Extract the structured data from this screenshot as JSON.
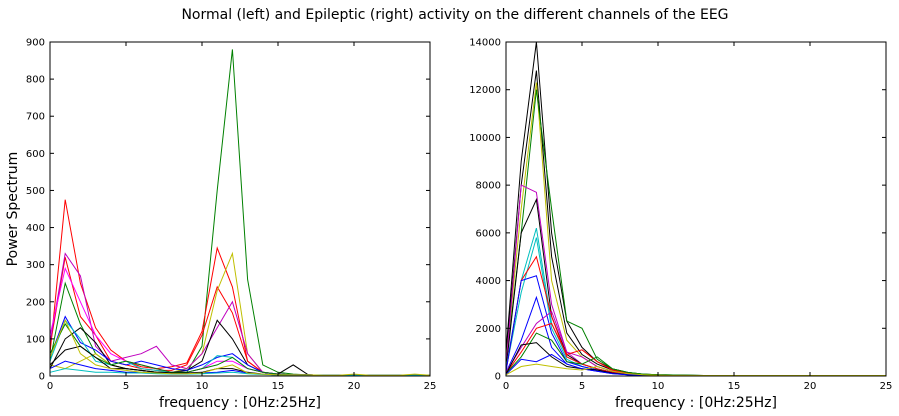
{
  "figure": {
    "suptitle": "Normal (left) and Epileptic (right) activity on the different channels of the EEG"
  },
  "chart_data": [
    {
      "type": "line",
      "panel": "left",
      "title": "",
      "xlabel": "frequency : [0Hz:25Hz]",
      "ylabel": "Power Spectrum",
      "xlim": [
        0,
        25
      ],
      "ylim": [
        0,
        900
      ],
      "xticks": [
        0,
        5,
        10,
        15,
        20,
        25
      ],
      "yticks": [
        0,
        100,
        200,
        300,
        400,
        500,
        600,
        700,
        800,
        900
      ],
      "x": [
        0,
        1,
        2,
        3,
        4,
        5,
        6,
        7,
        8,
        9,
        10,
        11,
        12,
        13,
        14,
        15,
        16,
        17,
        18,
        19,
        20,
        21,
        22,
        23,
        24,
        25
      ],
      "series": [
        {
          "color": "#008000",
          "values": [
            40,
            250,
            140,
            60,
            30,
            20,
            15,
            10,
            8,
            10,
            80,
            500,
            880,
            260,
            30,
            10,
            5,
            3,
            2,
            2,
            2,
            2,
            2,
            2,
            2,
            2
          ]
        },
        {
          "color": "#ff0000",
          "values": [
            60,
            475,
            250,
            130,
            70,
            40,
            25,
            20,
            25,
            35,
            120,
            345,
            240,
            40,
            10,
            5,
            3,
            3,
            2,
            2,
            2,
            2,
            2,
            2,
            2,
            2
          ]
        },
        {
          "color": "#ff0000",
          "values": [
            80,
            320,
            160,
            110,
            40,
            30,
            20,
            15,
            15,
            30,
            110,
            240,
            170,
            40,
            10,
            5,
            3,
            3,
            2,
            2,
            2,
            2,
            2,
            2,
            2,
            2
          ]
        },
        {
          "color": "#bfbf00",
          "values": [
            30,
            20,
            40,
            60,
            30,
            20,
            15,
            10,
            10,
            20,
            60,
            230,
            330,
            60,
            10,
            5,
            3,
            3,
            2,
            2,
            2,
            2,
            2,
            2,
            2,
            2
          ]
        },
        {
          "color": "#bf00bf",
          "values": [
            90,
            330,
            270,
            80,
            40,
            50,
            60,
            80,
            30,
            20,
            60,
            130,
            200,
            60,
            10,
            5,
            3,
            3,
            2,
            2,
            2,
            2,
            2,
            2,
            2,
            2
          ]
        },
        {
          "color": "#000000",
          "values": [
            20,
            100,
            130,
            90,
            30,
            20,
            15,
            10,
            10,
            15,
            40,
            150,
            100,
            30,
            10,
            5,
            30,
            3,
            2,
            2,
            2,
            2,
            2,
            2,
            2,
            2
          ]
        },
        {
          "color": "#0000ff",
          "values": [
            50,
            160,
            90,
            70,
            40,
            30,
            40,
            30,
            20,
            15,
            30,
            50,
            60,
            30,
            10,
            5,
            3,
            3,
            2,
            2,
            2,
            2,
            2,
            2,
            2,
            2
          ]
        },
        {
          "color": "#00bfbf",
          "values": [
            40,
            150,
            100,
            40,
            30,
            40,
            20,
            15,
            10,
            10,
            20,
            55,
            50,
            20,
            10,
            5,
            3,
            3,
            2,
            2,
            2,
            2,
            2,
            2,
            2,
            2
          ]
        },
        {
          "color": "#ff00ff",
          "values": [
            110,
            290,
            200,
            110,
            60,
            40,
            30,
            20,
            10,
            10,
            20,
            40,
            40,
            20,
            10,
            5,
            3,
            3,
            2,
            2,
            2,
            2,
            2,
            2,
            2,
            2
          ]
        },
        {
          "color": "#008000",
          "values": [
            60,
            140,
            80,
            50,
            30,
            40,
            30,
            20,
            10,
            10,
            20,
            30,
            50,
            20,
            10,
            5,
            3,
            3,
            2,
            2,
            2,
            2,
            2,
            2,
            2,
            2
          ]
        },
        {
          "color": "#000000",
          "values": [
            30,
            70,
            80,
            50,
            20,
            20,
            15,
            10,
            8,
            8,
            10,
            20,
            20,
            10,
            5,
            3,
            3,
            3,
            2,
            2,
            2,
            2,
            2,
            2,
            2,
            2
          ]
        },
        {
          "color": "#0000ff",
          "values": [
            20,
            40,
            30,
            20,
            15,
            10,
            10,
            8,
            6,
            6,
            8,
            10,
            15,
            8,
            5,
            3,
            3,
            3,
            2,
            2,
            2,
            2,
            2,
            2,
            2,
            2
          ]
        },
        {
          "color": "#00bfbf",
          "values": [
            10,
            20,
            15,
            10,
            10,
            8,
            8,
            6,
            5,
            5,
            6,
            8,
            10,
            6,
            4,
            3,
            3,
            3,
            2,
            2,
            2,
            2,
            2,
            2,
            2,
            2
          ]
        },
        {
          "color": "#bfbf00",
          "values": [
            50,
            150,
            60,
            30,
            20,
            15,
            10,
            8,
            6,
            6,
            8,
            20,
            30,
            8,
            5,
            3,
            3,
            3,
            2,
            2,
            5,
            2,
            2,
            2,
            5,
            2
          ]
        }
      ]
    },
    {
      "type": "line",
      "panel": "right",
      "title": "",
      "xlabel": "frequency : [0Hz:25Hz]",
      "ylabel": "",
      "xlim": [
        0,
        25
      ],
      "ylim": [
        0,
        14000
      ],
      "xticks": [
        0,
        5,
        10,
        15,
        20,
        25
      ],
      "yticks": [
        0,
        2000,
        4000,
        6000,
        8000,
        10000,
        12000,
        14000
      ],
      "x": [
        0,
        1,
        2,
        3,
        4,
        5,
        6,
        7,
        8,
        9,
        10,
        11,
        12,
        13,
        14,
        15,
        16,
        17,
        18,
        19,
        20,
        21,
        22,
        23,
        24,
        25
      ],
      "series": [
        {
          "color": "#000000",
          "values": [
            1000,
            9000,
            14000,
            6000,
            2300,
            1200,
            600,
            300,
            150,
            80,
            50,
            40,
            30,
            20,
            20,
            20,
            20,
            20,
            20,
            20,
            20,
            20,
            20,
            20,
            20,
            20
          ]
        },
        {
          "color": "#000000",
          "values": [
            800,
            8000,
            12800,
            5000,
            1800,
            900,
            500,
            250,
            120,
            60,
            40,
            30,
            20,
            20,
            20,
            20,
            20,
            20,
            20,
            20,
            20,
            20,
            20,
            20,
            20,
            20
          ]
        },
        {
          "color": "#bfbf00",
          "values": [
            600,
            7000,
            12300,
            4000,
            1500,
            800,
            400,
            200,
            100,
            50,
            40,
            30,
            20,
            20,
            20,
            20,
            20,
            20,
            20,
            20,
            20,
            20,
            20,
            20,
            20,
            20
          ]
        },
        {
          "color": "#008000",
          "values": [
            500,
            6000,
            12000,
            7000,
            2300,
            2000,
            700,
            300,
            150,
            80,
            50,
            40,
            30,
            20,
            20,
            20,
            20,
            20,
            20,
            20,
            20,
            20,
            20,
            20,
            20,
            20
          ]
        },
        {
          "color": "#bf00bf",
          "values": [
            400,
            8000,
            7700,
            3000,
            1000,
            500,
            300,
            150,
            80,
            40,
            30,
            20,
            20,
            20,
            20,
            20,
            20,
            20,
            20,
            20,
            20,
            20,
            20,
            20,
            20,
            20
          ]
        },
        {
          "color": "#000000",
          "values": [
            300,
            6000,
            7400,
            2500,
            900,
            500,
            300,
            150,
            80,
            40,
            30,
            20,
            20,
            20,
            20,
            20,
            20,
            20,
            20,
            20,
            20,
            20,
            20,
            20,
            20,
            20
          ]
        },
        {
          "color": "#00bfbf",
          "values": [
            300,
            4000,
            6200,
            2200,
            800,
            500,
            300,
            150,
            80,
            40,
            30,
            20,
            20,
            20,
            20,
            20,
            20,
            20,
            20,
            20,
            20,
            20,
            20,
            20,
            20,
            20
          ]
        },
        {
          "color": "#00bfbf",
          "values": [
            250,
            3500,
            5800,
            2000,
            700,
            400,
            250,
            120,
            60,
            30,
            20,
            20,
            20,
            20,
            20,
            20,
            20,
            20,
            20,
            20,
            20,
            20,
            20,
            20,
            20,
            20
          ]
        },
        {
          "color": "#ff0000",
          "values": [
            200,
            4000,
            5000,
            2500,
            800,
            500,
            300,
            150,
            80,
            40,
            30,
            20,
            20,
            20,
            20,
            20,
            20,
            20,
            20,
            20,
            20,
            20,
            20,
            20,
            20,
            20
          ]
        },
        {
          "color": "#0000ff",
          "values": [
            200,
            4000,
            4200,
            1800,
            600,
            400,
            250,
            120,
            60,
            30,
            20,
            20,
            20,
            20,
            20,
            20,
            20,
            20,
            20,
            20,
            20,
            20,
            20,
            20,
            20,
            20
          ]
        },
        {
          "color": "#0000ff",
          "values": [
            150,
            1500,
            3300,
            1200,
            500,
            300,
            200,
            100,
            50,
            30,
            20,
            20,
            20,
            20,
            20,
            20,
            20,
            20,
            20,
            20,
            20,
            20,
            20,
            20,
            20,
            20
          ]
        },
        {
          "color": "#bf00bf",
          "values": [
            150,
            1200,
            2200,
            2700,
            1000,
            800,
            400,
            200,
            100,
            50,
            30,
            20,
            20,
            20,
            20,
            20,
            20,
            20,
            20,
            20,
            20,
            20,
            20,
            20,
            20,
            20
          ]
        },
        {
          "color": "#ff0000",
          "values": [
            100,
            1000,
            2000,
            2200,
            900,
            1100,
            600,
            250,
            120,
            60,
            40,
            30,
            20,
            20,
            20,
            20,
            20,
            20,
            20,
            20,
            20,
            20,
            20,
            20,
            20,
            20
          ]
        },
        {
          "color": "#008000",
          "values": [
            100,
            800,
            1800,
            1500,
            600,
            500,
            800,
            300,
            150,
            80,
            50,
            40,
            30,
            20,
            20,
            20,
            20,
            20,
            20,
            20,
            20,
            20,
            20,
            20,
            20,
            20
          ]
        },
        {
          "color": "#000000",
          "values": [
            80,
            1300,
            1400,
            800,
            400,
            300,
            250,
            120,
            60,
            30,
            20,
            20,
            20,
            20,
            20,
            20,
            20,
            20,
            20,
            20,
            20,
            20,
            20,
            20,
            20,
            20
          ]
        },
        {
          "color": "#0000ff",
          "values": [
            60,
            700,
            600,
            900,
            500,
            300,
            200,
            100,
            50,
            30,
            20,
            20,
            20,
            20,
            20,
            20,
            20,
            20,
            20,
            20,
            20,
            20,
            20,
            20,
            20,
            20
          ]
        },
        {
          "color": "#bfbf00",
          "values": [
            50,
            400,
            500,
            400,
            300,
            250,
            400,
            200,
            100,
            50,
            30,
            20,
            20,
            20,
            20,
            20,
            20,
            20,
            20,
            20,
            20,
            20,
            20,
            20,
            20,
            20
          ]
        }
      ]
    }
  ]
}
